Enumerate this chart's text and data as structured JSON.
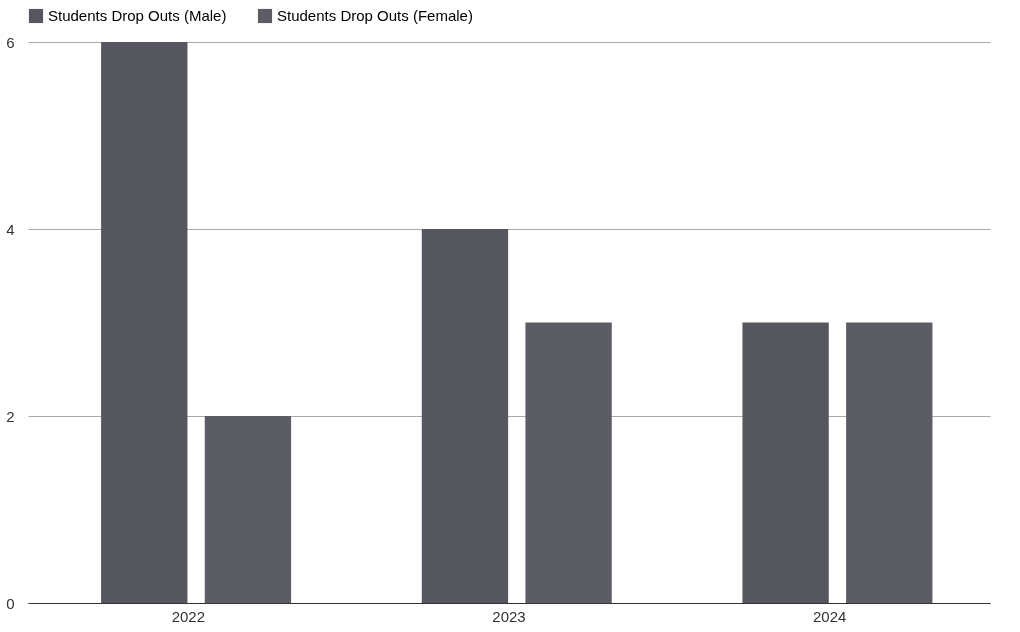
{
  "chart_data": {
    "type": "bar",
    "categories": [
      "2022",
      "2023",
      "2024"
    ],
    "series": [
      {
        "name": "Students Drop Outs (Male)",
        "color": "#56565e",
        "values": [
          6,
          4,
          3
        ]
      },
      {
        "name": "Students Drop Outs (Female)",
        "color": "#5c5c64",
        "values": [
          2,
          3,
          3
        ]
      }
    ],
    "ylim": [
      0,
      6
    ],
    "yticks": [
      0,
      2,
      4,
      6
    ],
    "grid": "y",
    "legend": "top"
  }
}
